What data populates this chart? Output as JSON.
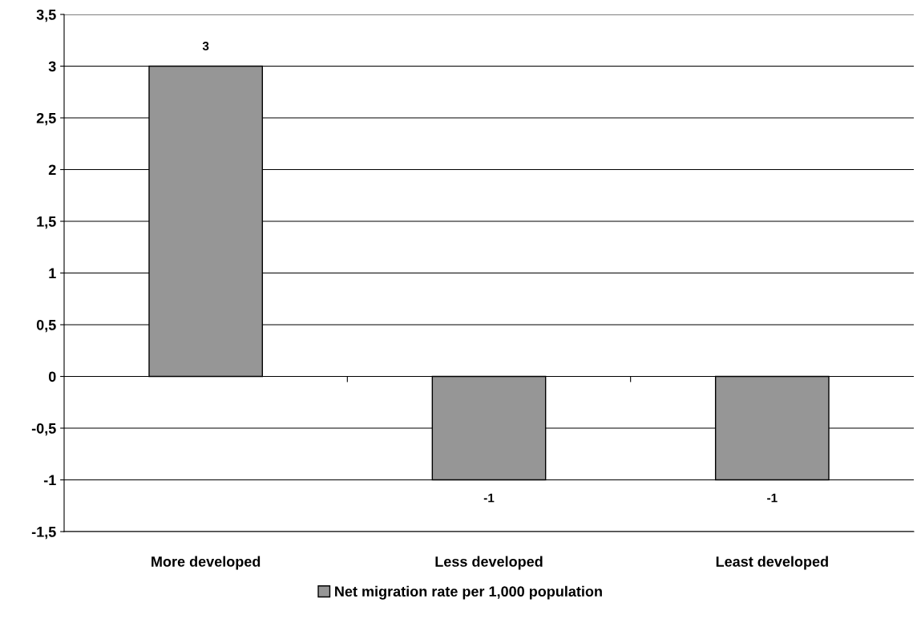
{
  "chart_data": {
    "type": "bar",
    "categories": [
      "More developed",
      "Less developed",
      "Least developed"
    ],
    "series": [
      {
        "name": "Net migration rate per 1,000 population",
        "color": "#969696",
        "values": [
          3,
          -1,
          -1
        ]
      }
    ],
    "ylim": [
      -1.5,
      3.5
    ],
    "yticks": [
      {
        "value": -1.5,
        "label": "-1,5"
      },
      {
        "value": -1,
        "label": "-1"
      },
      {
        "value": -0.5,
        "label": "-0,5"
      },
      0,
      {
        "value": 0.5,
        "label": "0,5"
      },
      1,
      {
        "value": 1.5,
        "label": "1,5"
      },
      2,
      {
        "value": 2.5,
        "label": "2,5"
      },
      3,
      {
        "value": 3.5,
        "label": "3,5"
      }
    ],
    "grid": "y",
    "legend": "bottom",
    "data_labels": true
  }
}
